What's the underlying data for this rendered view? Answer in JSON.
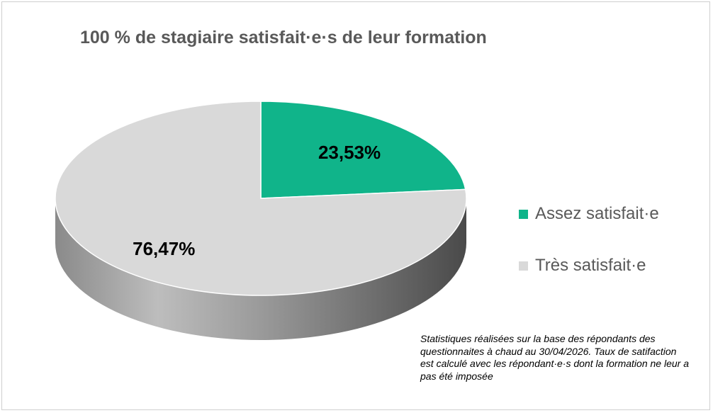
{
  "chart_data": {
    "type": "pie",
    "title": "100 % de stagiaire satisfait·e·s de leur formation",
    "categories": [
      "Assez satisfait·e",
      "Très satisfait·e"
    ],
    "values": [
      23.53,
      76.47
    ],
    "data_labels": [
      "23,53%",
      "76,47%"
    ],
    "colors": [
      "#10b48a",
      "#d9d9d9"
    ],
    "legend_position": "right",
    "style": "3d-pie"
  },
  "footnote": "Statistiques réalisées sur la base des répondants des questionnaites à chaud au 30/04/2026.  Taux de satifaction est calculé avec les répondant·e·s dont la formation ne leur a pas été imposée"
}
